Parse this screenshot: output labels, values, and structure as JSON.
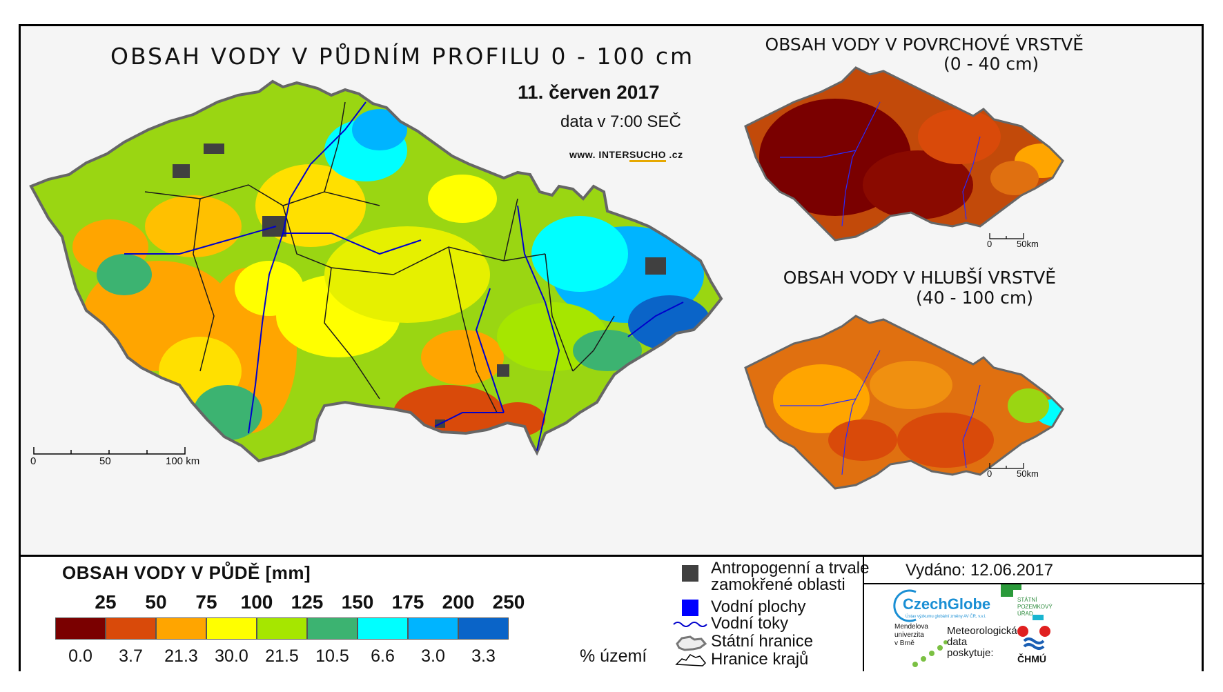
{
  "main_map": {
    "title": "OBSAH VODY V PŮDNÍM PROFILU 0 - 100 cm",
    "date": "11. červen 2017",
    "time": "data v 7:00 SEČ",
    "website_prefix": "www. INTER",
    "website_brand": "SUCHO",
    "website_suffix": " .cz",
    "scale": {
      "zero": "0",
      "mid": "50",
      "end": "100 km"
    }
  },
  "inset_top": {
    "title": "OBSAH VODY V POVRCHOVÉ VRSTVĚ",
    "range": "(0 - 40 cm)",
    "scale": {
      "zero": "0",
      "end": "50km"
    }
  },
  "inset_bottom": {
    "title": "OBSAH VODY V HLUBŠÍ VRSTVĚ",
    "range": "(40 - 100 cm)",
    "scale": {
      "zero": "0",
      "end": "50km"
    }
  },
  "legend": {
    "title": "OBSAH VODY V PŮDĚ [mm]",
    "class_bounds": [
      "25",
      "50",
      "75",
      "100",
      "125",
      "150",
      "175",
      "200",
      "250"
    ],
    "colors": [
      "#7a0000",
      "#d94a0a",
      "#ffa500",
      "#ffff00",
      "#a6e600",
      "#3cb371",
      "#00ffff",
      "#00b4ff",
      "#0a64c8"
    ],
    "percent_territory": [
      "0.0",
      "3.7",
      "21.3",
      "30.0",
      "21.5",
      "10.5",
      "6.6",
      "3.0",
      "3.3"
    ],
    "percent_unit": "% území"
  },
  "symbols": {
    "anthropogenic_line1": "Antropogenní a trvale",
    "anthropogenic_line2": "zamokřené oblasti",
    "water_bodies": "Vodní plochy",
    "water_courses": "Vodní toky",
    "state_border": "Státní hranice",
    "region_border": "Hranice krajů",
    "anthropogenic_color": "#404040",
    "water_body_color": "#0000ff",
    "water_course_color": "#0000cc"
  },
  "issued": "Vydáno: 12.06.2017",
  "logos": {
    "czechglobe": "CzechGlobe",
    "czechglobe_sub": "Ústav výzkumu globální změny AV ČR, v.v.i.",
    "spu_line1": "STÁTNÍ",
    "spu_line2": "POZEMKOVÝ",
    "spu_line3": "ÚŘAD",
    "mendel_line1": "Mendelova",
    "mendel_line2": "univerzita",
    "mendel_line3": "v Brně",
    "meteo_line1": "Meteorologická",
    "meteo_line2": "data",
    "meteo_line3": "poskytuje:",
    "chmu": "ČHMÚ"
  }
}
